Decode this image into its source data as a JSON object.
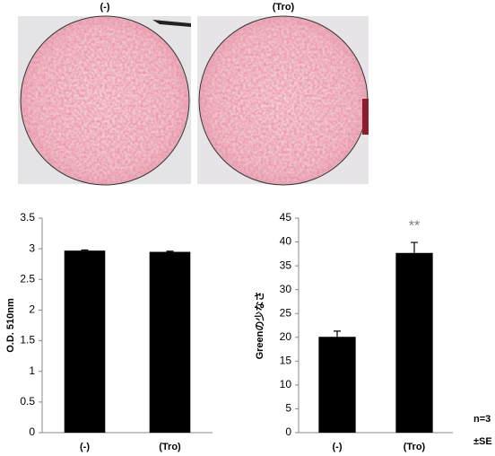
{
  "photos": {
    "labels": [
      "(-)",
      "(Tro)"
    ]
  },
  "notes": [
    "n=3",
    "±SE"
  ],
  "chart_data": [
    {
      "type": "bar",
      "y_label": "O.D. 510nm",
      "categories": [
        "(-)",
        "(Tro)"
      ],
      "values": [
        2.97,
        2.95
      ],
      "errors": [
        0.01,
        0.01
      ],
      "color": "#000000",
      "ylim": [
        0,
        3.5
      ],
      "yticks": [
        0,
        0.5,
        1,
        1.5,
        2,
        2.5,
        3,
        3.5
      ]
    },
    {
      "type": "bar",
      "y_label": "Greenの少なさ",
      "categories": [
        "(-)",
        "(Tro)"
      ],
      "values": [
        20.1,
        37.7
      ],
      "errors": [
        1.2,
        2.2
      ],
      "color": "#000000",
      "ylim": [
        0,
        45
      ],
      "yticks": [
        0,
        5,
        10,
        15,
        20,
        25,
        30,
        35,
        40,
        45
      ],
      "annotation": "**"
    }
  ]
}
